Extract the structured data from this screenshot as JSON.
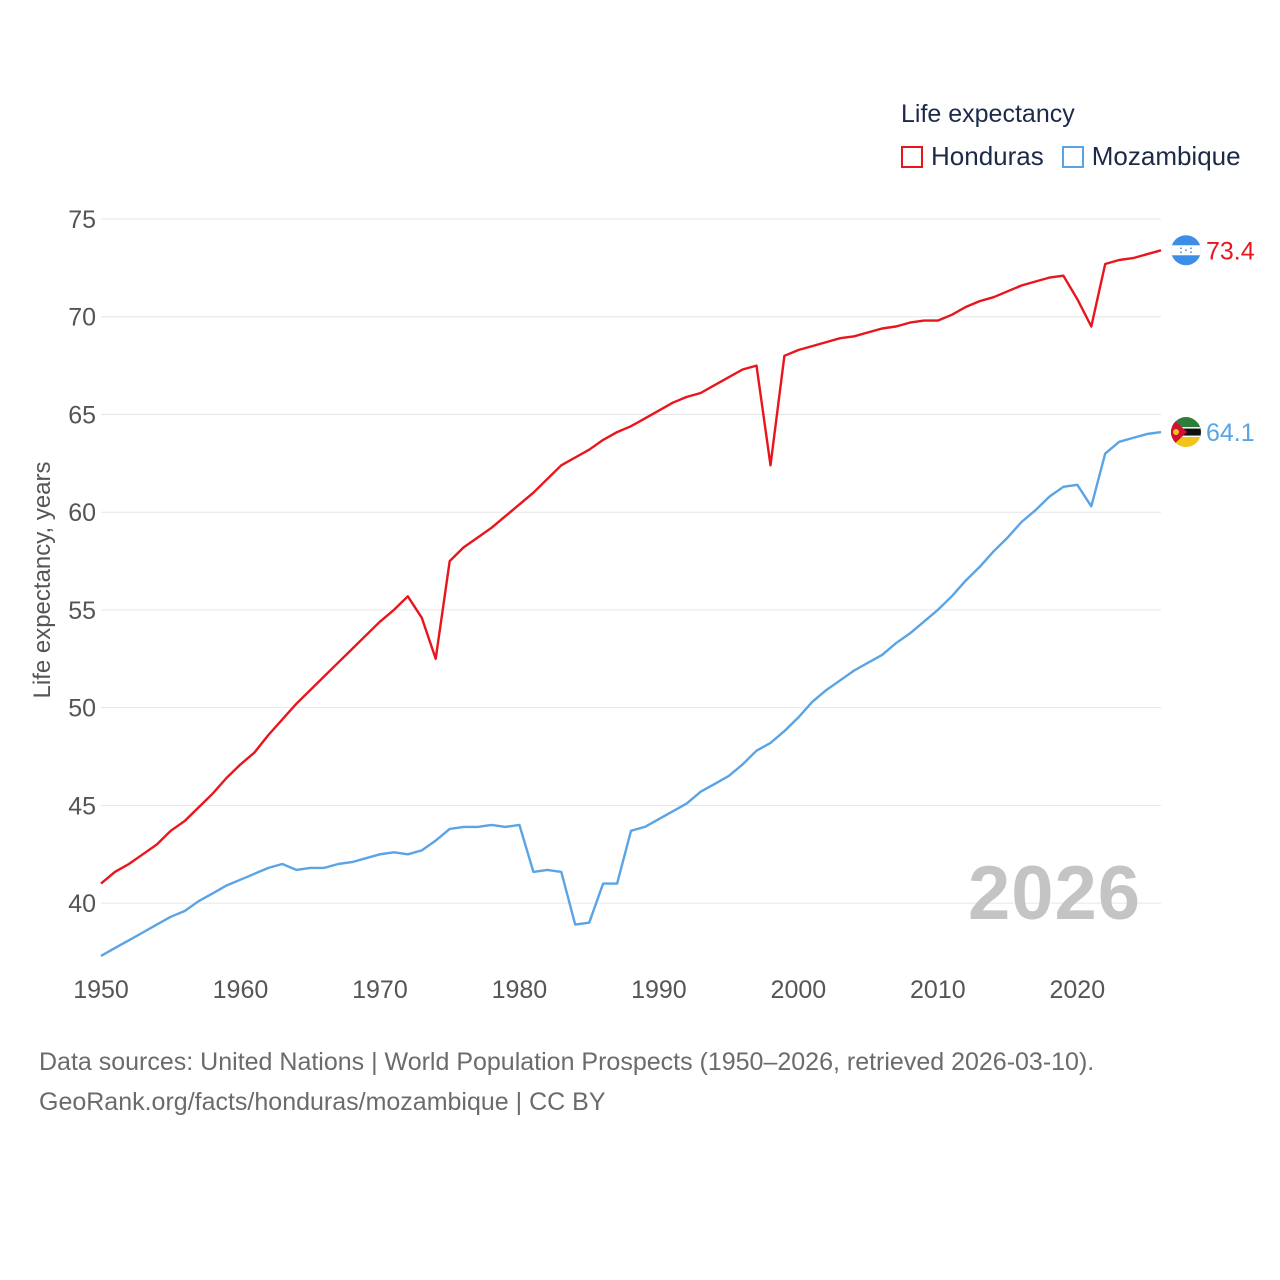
{
  "legend": {
    "title": "Life expectancy",
    "items": [
      {
        "name": "Honduras",
        "color": "#e8161c"
      },
      {
        "name": "Mozambique",
        "color": "#5aa4e6"
      }
    ]
  },
  "watermark_year": "2026",
  "footer": {
    "line1": "Data sources: United Nations | World Population Prospects (1950–2026, retrieved 2026-03-10).",
    "line2": "GeoRank.org/facts/honduras/mozambique | CC BY"
  },
  "chart_data": {
    "type": "line",
    "title": "Life expectancy",
    "xlabel": "",
    "ylabel": "Life expectancy, years",
    "xlim": [
      1950,
      2026
    ],
    "ylim": [
      37.5,
      75
    ],
    "x_ticks": [
      1950,
      1960,
      1970,
      1980,
      1990,
      2000,
      2010,
      2020
    ],
    "y_ticks": [
      40,
      45,
      50,
      55,
      60,
      65,
      70,
      75
    ],
    "grid": true,
    "legend_position": "top-right",
    "series": [
      {
        "name": "Honduras",
        "color": "#e8161c",
        "flag": "honduras",
        "end_label": "73.4",
        "x": [
          1950,
          1951,
          1952,
          1953,
          1954,
          1955,
          1956,
          1957,
          1958,
          1959,
          1960,
          1961,
          1962,
          1963,
          1964,
          1965,
          1966,
          1967,
          1968,
          1969,
          1970,
          1971,
          1972,
          1973,
          1974,
          1975,
          1976,
          1977,
          1978,
          1979,
          1980,
          1981,
          1982,
          1983,
          1984,
          1985,
          1986,
          1987,
          1988,
          1989,
          1990,
          1991,
          1992,
          1993,
          1994,
          1995,
          1996,
          1997,
          1998,
          1999,
          2000,
          2001,
          2002,
          2003,
          2004,
          2005,
          2006,
          2007,
          2008,
          2009,
          2010,
          2011,
          2012,
          2013,
          2014,
          2015,
          2016,
          2017,
          2018,
          2019,
          2020,
          2021,
          2022,
          2023,
          2024,
          2025,
          2026
        ],
        "values": [
          41.0,
          41.6,
          42.0,
          42.5,
          43.0,
          43.7,
          44.2,
          44.9,
          45.6,
          46.4,
          47.1,
          47.7,
          48.6,
          49.4,
          50.2,
          50.9,
          51.6,
          52.3,
          53.0,
          53.7,
          54.4,
          55.0,
          55.7,
          54.6,
          52.5,
          57.5,
          58.2,
          58.7,
          59.2,
          59.8,
          60.4,
          61.0,
          61.7,
          62.4,
          62.8,
          63.2,
          63.7,
          64.1,
          64.4,
          64.8,
          65.2,
          65.6,
          65.9,
          66.1,
          66.5,
          66.9,
          67.3,
          67.5,
          62.4,
          68.0,
          68.3,
          68.5,
          68.7,
          68.9,
          69.0,
          69.2,
          69.4,
          69.5,
          69.7,
          69.8,
          69.8,
          70.1,
          70.5,
          70.8,
          71.0,
          71.3,
          71.6,
          71.8,
          72.0,
          72.1,
          70.9,
          69.5,
          72.7,
          72.9,
          73.0,
          73.2,
          73.4
        ]
      },
      {
        "name": "Mozambique",
        "color": "#5aa4e6",
        "flag": "mozambique",
        "end_label": "64.1",
        "x": [
          1950,
          1951,
          1952,
          1953,
          1954,
          1955,
          1956,
          1957,
          1958,
          1959,
          1960,
          1961,
          1962,
          1963,
          1964,
          1965,
          1966,
          1967,
          1968,
          1969,
          1970,
          1971,
          1972,
          1973,
          1974,
          1975,
          1976,
          1977,
          1978,
          1979,
          1980,
          1981,
          1982,
          1983,
          1984,
          1985,
          1986,
          1987,
          1988,
          1989,
          1990,
          1991,
          1992,
          1993,
          1994,
          1995,
          1996,
          1997,
          1998,
          1999,
          2000,
          2001,
          2002,
          2003,
          2004,
          2005,
          2006,
          2007,
          2008,
          2009,
          2010,
          2011,
          2012,
          2013,
          2014,
          2015,
          2016,
          2017,
          2018,
          2019,
          2020,
          2021,
          2022,
          2023,
          2024,
          2025,
          2026
        ],
        "values": [
          37.3,
          37.7,
          38.1,
          38.5,
          38.9,
          39.3,
          39.6,
          40.1,
          40.5,
          40.9,
          41.2,
          41.5,
          41.8,
          42.0,
          41.7,
          41.8,
          41.8,
          42.0,
          42.1,
          42.3,
          42.5,
          42.6,
          42.5,
          42.7,
          43.2,
          43.8,
          43.9,
          43.9,
          44.0,
          43.9,
          44.0,
          41.6,
          41.7,
          41.6,
          38.9,
          39.0,
          41.0,
          41.0,
          43.7,
          43.9,
          44.3,
          44.7,
          45.1,
          45.7,
          46.1,
          46.5,
          47.1,
          47.8,
          48.2,
          48.8,
          49.5,
          50.3,
          50.9,
          51.4,
          51.9,
          52.3,
          52.7,
          53.3,
          53.8,
          54.4,
          55.0,
          55.7,
          56.5,
          57.2,
          58.0,
          58.7,
          59.5,
          60.1,
          60.8,
          61.3,
          61.4,
          60.3,
          63.0,
          63.6,
          63.8,
          64.0,
          64.1
        ]
      }
    ]
  }
}
